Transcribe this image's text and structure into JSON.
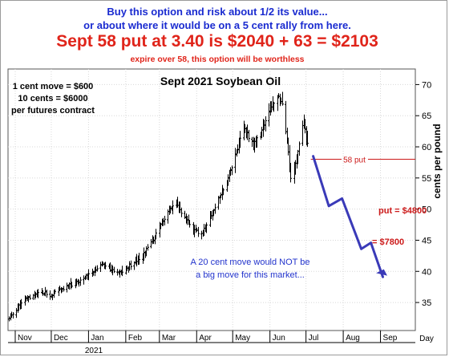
{
  "header": {
    "line1": "Buy this option and risk about 1/2 its value...",
    "line2": "or about where it would be on a 5 cent rally from here.",
    "line3": "Sept 58 put at 3.40 is $2040 + 63 = $2103",
    "line4": "expire over 58, this option will be worthless"
  },
  "colors": {
    "header_blue": "#1a2bd0",
    "header_red": "#e0241a",
    "projection": "#3a3ab8",
    "put_line": "#cc1a1a",
    "bars": "#000000"
  },
  "chart_data": {
    "type": "ohlc-bar",
    "title": "Sept 2021 Soybean Oil",
    "ylabel": "cents per pound",
    "ylim": [
      30.5,
      72.5
    ],
    "y_ticks": [
      35,
      40,
      45,
      50,
      55,
      60,
      65,
      70
    ],
    "x_range": [
      "2020-10-26",
      "2021-09-30"
    ],
    "x_ticks": [
      {
        "label": "Nov",
        "date": "2020-11-01"
      },
      {
        "label": "Dec",
        "date": "2020-12-01"
      },
      {
        "label": "Jan",
        "date": "2021-01-01"
      },
      {
        "label": "Feb",
        "date": "2021-02-01"
      },
      {
        "label": "Mar",
        "date": "2021-03-01"
      },
      {
        "label": "Apr",
        "date": "2021-04-01"
      },
      {
        "label": "May",
        "date": "2021-05-01"
      },
      {
        "label": "Jun",
        "date": "2021-06-01"
      },
      {
        "label": "Jul",
        "date": "2021-07-01"
      },
      {
        "label": "Aug",
        "date": "2021-08-01"
      },
      {
        "label": "Sep",
        "date": "2021-09-01"
      }
    ],
    "right_axis_label": "Day",
    "year_label": "2021",
    "price_path": [
      {
        "date": "2020-10-27",
        "close": 32.4
      },
      {
        "date": "2020-11-03",
        "close": 34.2
      },
      {
        "date": "2020-11-10",
        "close": 35.5
      },
      {
        "date": "2020-11-17",
        "close": 36.3
      },
      {
        "date": "2020-11-24",
        "close": 36.5
      },
      {
        "date": "2020-12-01",
        "close": 36.2
      },
      {
        "date": "2020-12-08",
        "close": 37.0
      },
      {
        "date": "2020-12-15",
        "close": 37.6
      },
      {
        "date": "2020-12-22",
        "close": 38.3
      },
      {
        "date": "2020-12-29",
        "close": 39.0
      },
      {
        "date": "2021-01-05",
        "close": 39.9
      },
      {
        "date": "2021-01-11",
        "close": 41.3
      },
      {
        "date": "2021-01-18",
        "close": 40.6
      },
      {
        "date": "2021-01-25",
        "close": 39.6
      },
      {
        "date": "2021-02-01",
        "close": 40.3
      },
      {
        "date": "2021-02-08",
        "close": 41.6
      },
      {
        "date": "2021-02-15",
        "close": 42.6
      },
      {
        "date": "2021-02-22",
        "close": 44.6
      },
      {
        "date": "2021-03-01",
        "close": 47.0
      },
      {
        "date": "2021-03-08",
        "close": 49.6
      },
      {
        "date": "2021-03-15",
        "close": 50.8
      },
      {
        "date": "2021-03-22",
        "close": 48.6
      },
      {
        "date": "2021-03-29",
        "close": 46.6
      },
      {
        "date": "2021-04-05",
        "close": 46.0
      },
      {
        "date": "2021-04-12",
        "close": 48.6
      },
      {
        "date": "2021-04-19",
        "close": 51.6
      },
      {
        "date": "2021-04-26",
        "close": 54.6
      },
      {
        "date": "2021-05-03",
        "close": 58.6
      },
      {
        "date": "2021-05-10",
        "close": 63.0
      },
      {
        "date": "2021-05-17",
        "close": 60.6
      },
      {
        "date": "2021-05-24",
        "close": 62.0
      },
      {
        "date": "2021-06-01",
        "close": 66.0
      },
      {
        "date": "2021-06-07",
        "close": 68.2
      },
      {
        "date": "2021-06-11",
        "close": 67.0
      },
      {
        "date": "2021-06-15",
        "close": 61.0
      },
      {
        "date": "2021-06-18",
        "close": 55.0
      },
      {
        "date": "2021-06-22",
        "close": 57.5
      },
      {
        "date": "2021-06-25",
        "close": 60.5
      },
      {
        "date": "2021-06-29",
        "close": 64.0
      },
      {
        "date": "2021-07-02",
        "close": 60.5
      }
    ],
    "put_strike_line": {
      "level": 58,
      "label": "58 put",
      "from": "2021-07-05",
      "to": "2021-09-30"
    },
    "projection_path": [
      {
        "date": "2021-07-07",
        "value": 58.5
      },
      {
        "date": "2021-07-20",
        "value": 50.5
      },
      {
        "date": "2021-07-31",
        "value": 51.7
      },
      {
        "date": "2021-08-16",
        "value": 43.6
      },
      {
        "date": "2021-08-24",
        "value": 44.6
      },
      {
        "date": "2021-09-03",
        "value": 39.1
      }
    ],
    "projection_arrow_tip": {
      "date": "2021-09-06",
      "value": 39.4
    },
    "annotations": {
      "contract_note": [
        "1 cent move = $600",
        "10 cents = $6000",
        "per futures contract"
      ],
      "put_value": "put = $4800",
      "put_value_2": "= $7800",
      "move_note": [
        "A 20 cent move would NOT  be",
        "a big move for this market..."
      ]
    }
  }
}
